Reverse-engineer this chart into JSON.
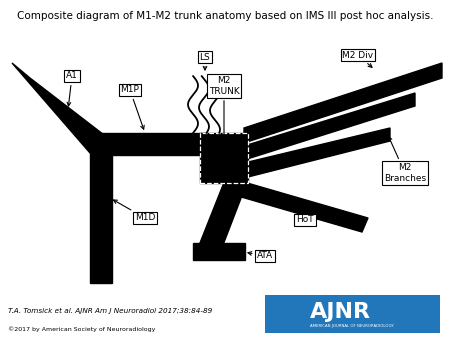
{
  "title": "Composite diagram of M1-M2 trunk anatomy based on IMS III post hoc analysis.",
  "title_fontsize": 7.5,
  "citation": "T.A. Tomsick et al. AJNR Am J Neuroradiol 2017;38:84-89",
  "copyright": "©2017 by American Society of Neuroradiology",
  "bg_color": "#ffffff",
  "black": "#000000",
  "ajnr_blue": "#2277bb"
}
